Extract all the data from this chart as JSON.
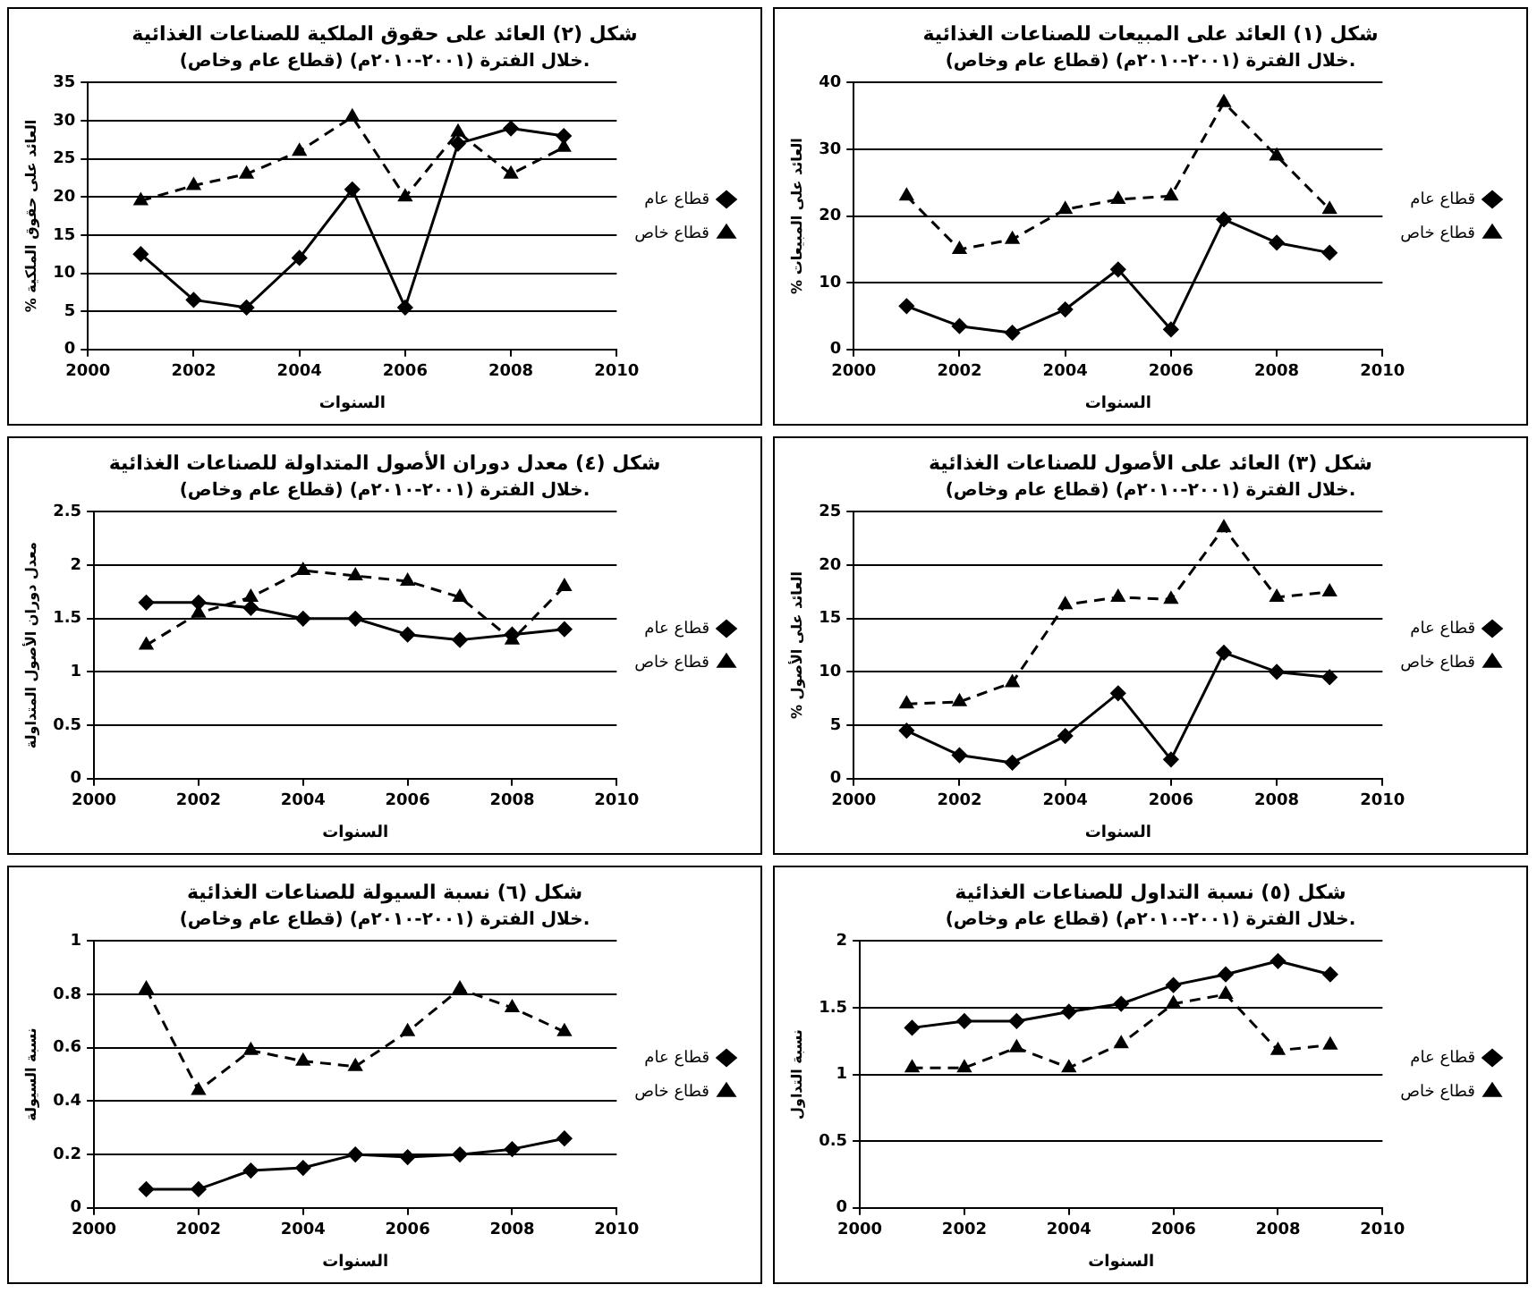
{
  "chart_data": [
    {
      "type": "line",
      "title": "شكل (٢) العائد على حقوق الملكية للصناعات الغذائية",
      "subtitle": "(قطاع عام وخاص) خلال الفترة (٢٠٠١-٢٠١٠م).",
      "xlabel": "السنوات",
      "ylabel": "% العائد على حقوق الملكية",
      "x": [
        2001,
        2002,
        2003,
        2004,
        2005,
        2006,
        2007,
        2008,
        2009
      ],
      "xlim": [
        2000,
        2010
      ],
      "xticks": [
        2000,
        2002,
        2004,
        2006,
        2008,
        2010
      ],
      "ylim": [
        0,
        35
      ],
      "yticks": [
        0,
        5,
        10,
        15,
        20,
        25,
        30,
        35
      ],
      "grid": "y",
      "legend": "right",
      "series": [
        {
          "name": "قطاع عام",
          "color": "#000000",
          "marker": "diamond",
          "line_style": "solid",
          "values": [
            12.5,
            6.5,
            5.5,
            12,
            21,
            5.5,
            27,
            29,
            28
          ]
        },
        {
          "name": "قطاع خاص",
          "color": "#000000",
          "marker": "triangle",
          "line_style": "dashed",
          "values": [
            19.5,
            21.5,
            23,
            26,
            30.5,
            20,
            28.5,
            23,
            26.5
          ]
        }
      ]
    },
    {
      "type": "line",
      "title": "شكل (١) العائد على المبيعات للصناعات الغذائية",
      "subtitle": "(قطاع عام وخاص) خلال الفترة (٢٠٠١-٢٠١٠م).",
      "xlabel": "السنوات",
      "ylabel": "% العائد على المبيعات",
      "x": [
        2001,
        2002,
        2003,
        2004,
        2005,
        2006,
        2007,
        2008,
        2009
      ],
      "xlim": [
        2000,
        2010
      ],
      "xticks": [
        2000,
        2002,
        2004,
        2006,
        2008,
        2010
      ],
      "ylim": [
        0,
        40
      ],
      "yticks": [
        0,
        10,
        20,
        30,
        40
      ],
      "grid": "y",
      "legend": "right",
      "series": [
        {
          "name": "قطاع عام",
          "color": "#000000",
          "marker": "diamond",
          "line_style": "solid",
          "values": [
            6.5,
            3.5,
            2.5,
            6,
            12,
            3,
            19.5,
            16,
            14.5
          ]
        },
        {
          "name": "قطاع خاص",
          "color": "#000000",
          "marker": "triangle",
          "line_style": "dashed",
          "values": [
            23,
            15,
            16.5,
            21,
            22.5,
            23,
            37,
            29,
            21
          ]
        }
      ]
    },
    {
      "type": "line",
      "title": "شكل (٤) معدل دوران الأصول المتداولة للصناعات الغذائية",
      "subtitle": "(قطاع عام وخاص) خلال الفترة (٢٠٠١-٢٠١٠م).",
      "xlabel": "السنوات",
      "ylabel": "معدل دوران الأصول المتداولة",
      "x": [
        2001,
        2002,
        2003,
        2004,
        2005,
        2006,
        2007,
        2008,
        2009
      ],
      "xlim": [
        2000,
        2010
      ],
      "xticks": [
        2000,
        2002,
        2004,
        2006,
        2008,
        2010
      ],
      "ylim": [
        0,
        2.5
      ],
      "yticks": [
        0,
        0.5,
        1,
        1.5,
        2,
        2.5
      ],
      "grid": "y",
      "legend": "right",
      "series": [
        {
          "name": "قطاع عام",
          "color": "#000000",
          "marker": "diamond",
          "line_style": "solid",
          "values": [
            1.65,
            1.65,
            1.6,
            1.5,
            1.5,
            1.35,
            1.3,
            1.35,
            1.4
          ]
        },
        {
          "name": "قطاع خاص",
          "color": "#000000",
          "marker": "triangle",
          "line_style": "dashed",
          "values": [
            1.25,
            1.55,
            1.7,
            1.95,
            1.9,
            1.85,
            1.7,
            1.3,
            1.8
          ]
        }
      ]
    },
    {
      "type": "line",
      "title": "شكل (٣) العائد على الأصول للصناعات الغذائية",
      "subtitle": "(قطاع عام وخاص) خلال الفترة (٢٠٠١-٢٠١٠م).",
      "xlabel": "السنوات",
      "ylabel": "% العائد على الأصول",
      "x": [
        2001,
        2002,
        2003,
        2004,
        2005,
        2006,
        2007,
        2008,
        2009
      ],
      "xlim": [
        2000,
        2010
      ],
      "xticks": [
        2000,
        2002,
        2004,
        2006,
        2008,
        2010
      ],
      "ylim": [
        0,
        25
      ],
      "yticks": [
        0,
        5,
        10,
        15,
        20,
        25
      ],
      "grid": "y",
      "legend": "right",
      "series": [
        {
          "name": "قطاع عام",
          "color": "#000000",
          "marker": "diamond",
          "line_style": "solid",
          "values": [
            4.5,
            2.2,
            1.5,
            4,
            8,
            1.8,
            11.8,
            10,
            9.5
          ]
        },
        {
          "name": "قطاع خاص",
          "color": "#000000",
          "marker": "triangle",
          "line_style": "dashed",
          "values": [
            7,
            7.2,
            9,
            16.3,
            17,
            16.8,
            23.5,
            17,
            17.5
          ]
        }
      ]
    },
    {
      "type": "line",
      "title": "شكل (٦) نسبة السيولة للصناعات الغذائية",
      "subtitle": "(قطاع عام وخاص) خلال الفترة (٢٠٠١-٢٠١٠م).",
      "xlabel": "السنوات",
      "ylabel": "نسبة السيولة",
      "x": [
        2001,
        2002,
        2003,
        2004,
        2005,
        2006,
        2007,
        2008,
        2009
      ],
      "xlim": [
        2000,
        2010
      ],
      "xticks": [
        2000,
        2002,
        2004,
        2006,
        2008,
        2010
      ],
      "ylim": [
        0,
        1
      ],
      "yticks": [
        0,
        0.2,
        0.4,
        0.6,
        0.8,
        1
      ],
      "grid": "y",
      "legend": "right",
      "series": [
        {
          "name": "قطاع عام",
          "color": "#000000",
          "marker": "diamond",
          "line_style": "solid",
          "values": [
            0.07,
            0.07,
            0.14,
            0.15,
            0.2,
            0.19,
            0.2,
            0.22,
            0.26
          ]
        },
        {
          "name": "قطاع خاص",
          "color": "#000000",
          "marker": "triangle",
          "line_style": "dashed",
          "values": [
            0.82,
            0.44,
            0.59,
            0.55,
            0.53,
            0.66,
            0.82,
            0.75,
            0.66
          ]
        }
      ]
    },
    {
      "type": "line",
      "title": "شكل (٥) نسبة التداول للصناعات الغذائية",
      "subtitle": "(قطاع عام وخاص) خلال الفترة (٢٠٠١-٢٠١٠م).",
      "xlabel": "السنوات",
      "ylabel": "نسبة التداول",
      "x": [
        2001,
        2002,
        2003,
        2004,
        2005,
        2006,
        2007,
        2008,
        2009
      ],
      "xlim": [
        2000,
        2010
      ],
      "xticks": [
        2000,
        2002,
        2004,
        2006,
        2008,
        2010
      ],
      "ylim": [
        0,
        2
      ],
      "yticks": [
        0,
        0.5,
        1,
        1.5,
        2
      ],
      "grid": "y",
      "legend": "right",
      "series": [
        {
          "name": "قطاع عام",
          "color": "#000000",
          "marker": "diamond",
          "line_style": "solid",
          "values": [
            1.35,
            1.4,
            1.4,
            1.47,
            1.53,
            1.67,
            1.75,
            1.85,
            1.75
          ]
        },
        {
          "name": "قطاع خاص",
          "color": "#000000",
          "marker": "triangle",
          "line_style": "dashed",
          "values": [
            1.05,
            1.05,
            1.2,
            1.05,
            1.23,
            1.53,
            1.6,
            1.18,
            1.22
          ]
        }
      ]
    }
  ]
}
